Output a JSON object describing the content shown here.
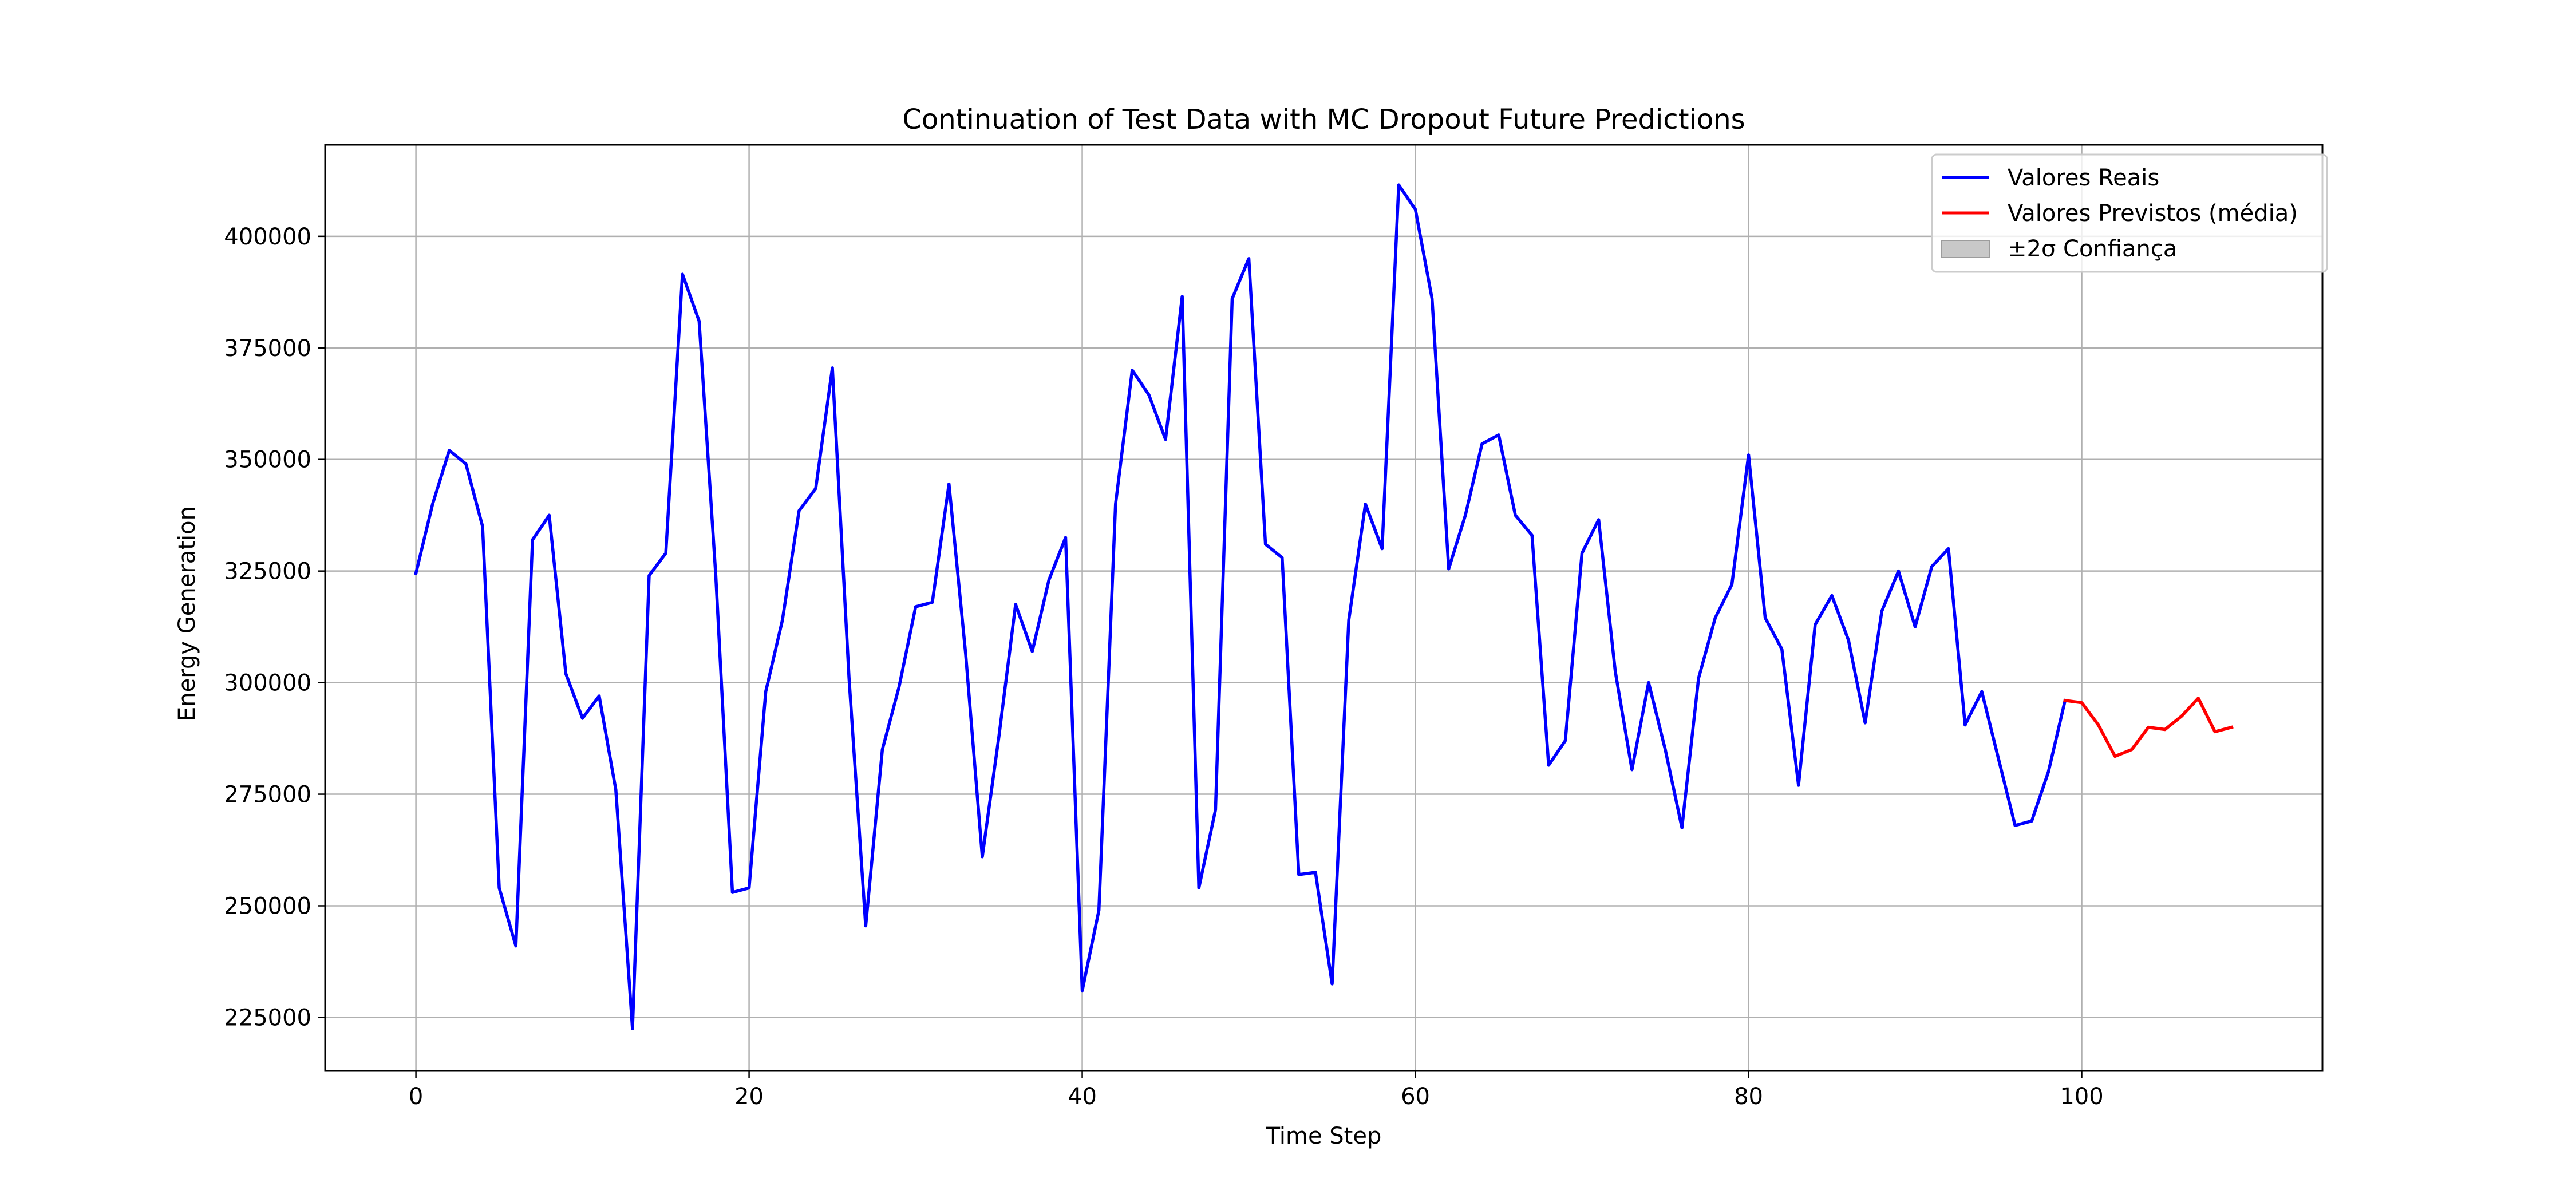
{
  "chart_data": {
    "type": "line",
    "title": "Continuation of Test Data with MC Dropout Future Predictions",
    "xlabel": "Time Step",
    "ylabel": "Energy Generation",
    "xlim": [
      -5.45,
      114.45
    ],
    "ylim": [
      213000,
      420500
    ],
    "xticks": [
      0,
      20,
      40,
      60,
      80,
      100
    ],
    "yticks": [
      225000,
      250000,
      275000,
      300000,
      325000,
      350000,
      375000,
      400000
    ],
    "grid": true,
    "legend_position": "top-right",
    "series": [
      {
        "name": "Valores Reais",
        "color": "#0000ff",
        "x": [
          0,
          1,
          2,
          3,
          4,
          5,
          6,
          7,
          8,
          9,
          10,
          11,
          12,
          13,
          14,
          15,
          16,
          17,
          18,
          19,
          20,
          21,
          22,
          23,
          24,
          25,
          26,
          27,
          28,
          29,
          30,
          31,
          32,
          33,
          34,
          35,
          36,
          37,
          38,
          39,
          40,
          41,
          42,
          43,
          44,
          45,
          46,
          47,
          48,
          49,
          50,
          51,
          52,
          53,
          54,
          55,
          56,
          57,
          58,
          59,
          60,
          61,
          62,
          63,
          64,
          65,
          66,
          67,
          68,
          69,
          70,
          71,
          72,
          73,
          74,
          75,
          76,
          77,
          78,
          79,
          80,
          81,
          82,
          83,
          84,
          85,
          86,
          87,
          88,
          89,
          90,
          91,
          92,
          93,
          94,
          95,
          96,
          97,
          98,
          99
        ],
        "y": [
          324500,
          340000,
          352000,
          349000,
          335000,
          254000,
          241000,
          332000,
          337500,
          302000,
          292000,
          297000,
          276000,
          222500,
          324000,
          329000,
          391500,
          381000,
          324000,
          253000,
          254000,
          298000,
          314000,
          338500,
          343500,
          370500,
          301000,
          245500,
          285000,
          299000,
          317000,
          318000,
          344500,
          306500,
          261000,
          288000,
          317500,
          307000,
          323000,
          332500,
          231000,
          249000,
          340000,
          370000,
          364500,
          354500,
          386500,
          254000,
          271500,
          386000,
          395000,
          331000,
          328000,
          257000,
          257500,
          232500,
          314000,
          340000,
          330000,
          411500,
          406000,
          386000,
          325500,
          337500,
          353500,
          355500,
          337500,
          333000,
          281500,
          287000,
          329000,
          336500,
          302500,
          280500,
          300000,
          285000,
          267500,
          301000,
          314500,
          322000,
          351000,
          314500,
          307500,
          277000,
          313000,
          319500,
          309500,
          291000,
          316000,
          325000,
          312500,
          326000,
          330000,
          290500,
          298000,
          283000,
          268000,
          269000,
          280000,
          296000
        ]
      },
      {
        "name": "Valores Previstos (média)",
        "color": "#ff0000",
        "x": [
          99,
          100,
          101,
          102,
          103,
          104,
          105,
          106,
          107,
          108,
          109
        ],
        "y": [
          296000,
          295500,
          290500,
          283500,
          285000,
          290000,
          289500,
          292500,
          296500,
          289000,
          290000
        ]
      }
    ],
    "confidence_band": {
      "name": "±2σ Confiança",
      "color": "#c8c8c8"
    }
  }
}
